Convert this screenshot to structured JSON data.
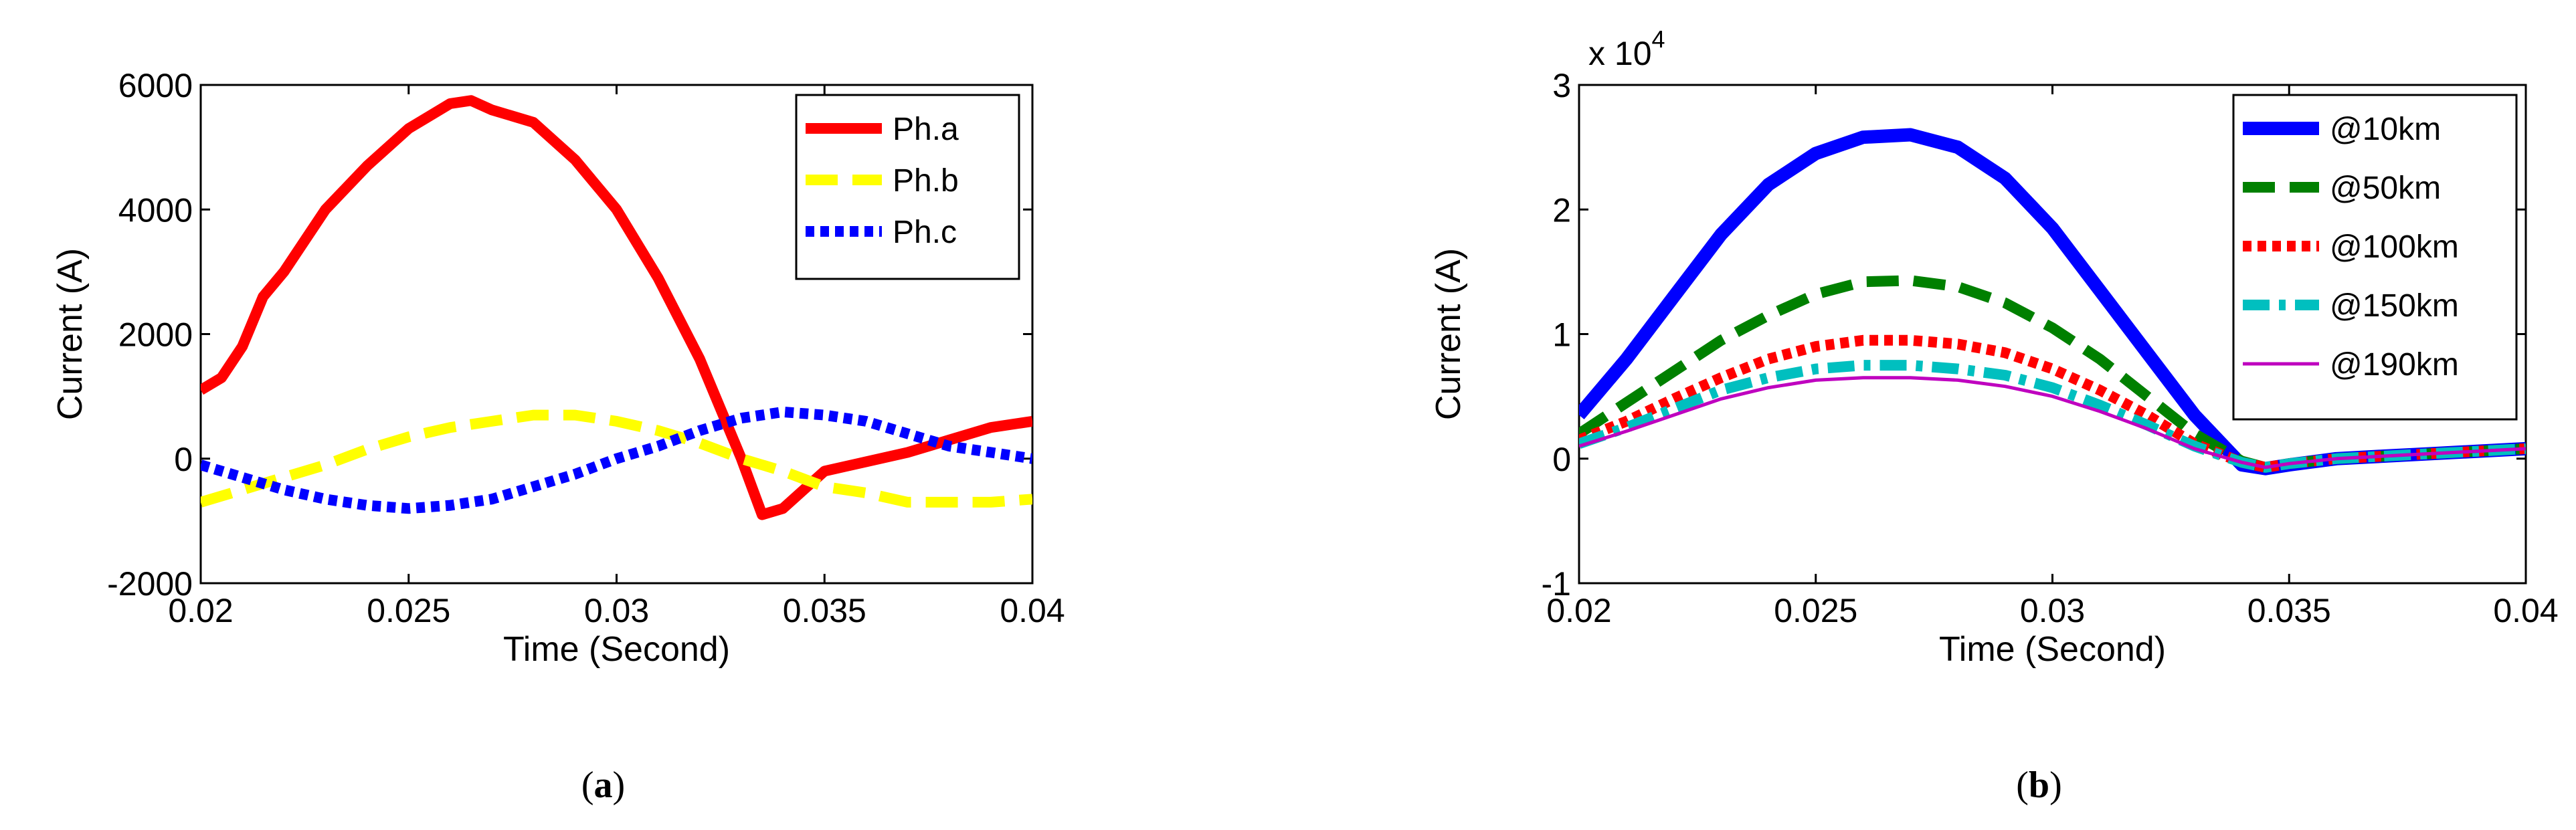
{
  "chart_data": [
    {
      "type": "line",
      "caption": {
        "open": "(",
        "letter": "a",
        "close": ")"
      },
      "xlabel": "Time (Second)",
      "ylabel": "Current (A)",
      "xlim": [
        0.02,
        0.04
      ],
      "ylim": [
        -2000,
        6000
      ],
      "xticks": [
        0.02,
        0.025,
        0.03,
        0.035,
        0.04
      ],
      "xtick_labels": [
        "0.02",
        "0.025",
        "0.03",
        "0.035",
        "0.04"
      ],
      "yticks": [
        -2000,
        0,
        2000,
        4000,
        6000
      ],
      "ytick_labels": [
        "-2000",
        "0",
        "2000",
        "4000",
        "6000"
      ],
      "legend_position": "top-right",
      "series": [
        {
          "name": "Ph.a",
          "color": "#ff0000",
          "style": "solid",
          "x": [
            0.02,
            0.0205,
            0.021,
            0.0215,
            0.022,
            0.023,
            0.024,
            0.025,
            0.026,
            0.0265,
            0.027,
            0.028,
            0.029,
            0.03,
            0.031,
            0.032,
            0.0325,
            0.033,
            0.0335,
            0.034,
            0.0345,
            0.035,
            0.036,
            0.037,
            0.038,
            0.039,
            0.04
          ],
          "y": [
            1100,
            1300,
            1800,
            2600,
            3000,
            4000,
            4700,
            5300,
            5700,
            5750,
            5600,
            5400,
            4800,
            4000,
            2900,
            1600,
            800,
            0,
            -900,
            -800,
            -500,
            -200,
            -50,
            100,
            300,
            500,
            600
          ]
        },
        {
          "name": "Ph.b",
          "color": "#ffff00",
          "style": "dashed",
          "x": [
            0.02,
            0.021,
            0.022,
            0.023,
            0.024,
            0.025,
            0.026,
            0.027,
            0.028,
            0.029,
            0.03,
            0.031,
            0.032,
            0.033,
            0.034,
            0.035,
            0.036,
            0.037,
            0.038,
            0.039,
            0.04
          ],
          "y": [
            -700,
            -500,
            -300,
            -100,
            150,
            350,
            500,
            600,
            700,
            700,
            600,
            450,
            250,
            0,
            -200,
            -450,
            -550,
            -700,
            -700,
            -700,
            -650
          ]
        },
        {
          "name": "Ph.c",
          "color": "#0000ff",
          "style": "dotted",
          "x": [
            0.02,
            0.021,
            0.022,
            0.023,
            0.024,
            0.025,
            0.026,
            0.027,
            0.028,
            0.029,
            0.03,
            0.031,
            0.032,
            0.033,
            0.034,
            0.035,
            0.036,
            0.037,
            0.038,
            0.039,
            0.04
          ],
          "y": [
            -100,
            -300,
            -500,
            -650,
            -750,
            -800,
            -750,
            -650,
            -450,
            -250,
            0,
            200,
            450,
            650,
            750,
            700,
            600,
            400,
            200,
            100,
            0
          ]
        }
      ]
    },
    {
      "type": "line",
      "caption": {
        "open": "(",
        "letter": "b",
        "close": ")"
      },
      "xlabel": "Time (Second)",
      "ylabel": "Current (A)",
      "multiplier": {
        "base": "x 10",
        "exponent": "4"
      },
      "xlim": [
        0.02,
        0.04
      ],
      "ylim": [
        -1,
        3
      ],
      "xticks": [
        0.02,
        0.025,
        0.03,
        0.035,
        0.04
      ],
      "xtick_labels": [
        "0.02",
        "0.025",
        "0.03",
        "0.035",
        "0.04"
      ],
      "yticks": [
        -1,
        0,
        1,
        2,
        3
      ],
      "ytick_labels": [
        "-1",
        "0",
        "1",
        "2",
        "3"
      ],
      "legend_position": "top-right",
      "series": [
        {
          "name": "@10km",
          "color": "#0000ff",
          "style": "solid-thick",
          "x": [
            0.02,
            0.021,
            0.022,
            0.023,
            0.024,
            0.025,
            0.026,
            0.027,
            0.028,
            0.029,
            0.03,
            0.031,
            0.032,
            0.033,
            0.034,
            0.0345,
            0.035,
            0.036,
            0.037,
            0.038,
            0.039,
            0.04
          ],
          "y": [
            0.35,
            0.8,
            1.3,
            1.8,
            2.2,
            2.45,
            2.58,
            2.6,
            2.5,
            2.25,
            1.85,
            1.35,
            0.85,
            0.35,
            -0.05,
            -0.08,
            -0.05,
            0.0,
            0.02,
            0.04,
            0.06,
            0.08
          ]
        },
        {
          "name": "@50km",
          "color": "#008000",
          "style": "dashed",
          "x": [
            0.02,
            0.021,
            0.022,
            0.023,
            0.024,
            0.025,
            0.026,
            0.027,
            0.028,
            0.029,
            0.03,
            0.031,
            0.032,
            0.033,
            0.034,
            0.0345,
            0.035,
            0.036,
            0.037,
            0.038,
            0.039,
            0.04
          ],
          "y": [
            0.2,
            0.45,
            0.7,
            0.95,
            1.15,
            1.32,
            1.42,
            1.43,
            1.38,
            1.25,
            1.05,
            0.8,
            0.5,
            0.2,
            -0.02,
            -0.07,
            -0.04,
            0.0,
            0.02,
            0.04,
            0.06,
            0.08
          ]
        },
        {
          "name": "@100km",
          "color": "#ff0000",
          "style": "dotted",
          "x": [
            0.02,
            0.021,
            0.022,
            0.023,
            0.024,
            0.025,
            0.026,
            0.027,
            0.028,
            0.029,
            0.03,
            0.031,
            0.032,
            0.033,
            0.034,
            0.0345,
            0.035,
            0.036,
            0.037,
            0.038,
            0.039,
            0.04
          ],
          "y": [
            0.15,
            0.3,
            0.48,
            0.65,
            0.8,
            0.9,
            0.95,
            0.95,
            0.92,
            0.85,
            0.72,
            0.55,
            0.35,
            0.12,
            -0.03,
            -0.07,
            -0.04,
            0.0,
            0.02,
            0.04,
            0.06,
            0.08
          ]
        },
        {
          "name": "@150km",
          "color": "#00bfbf",
          "style": "dashdot",
          "x": [
            0.02,
            0.021,
            0.022,
            0.023,
            0.024,
            0.025,
            0.026,
            0.027,
            0.028,
            0.029,
            0.03,
            0.031,
            0.032,
            0.033,
            0.034,
            0.0345,
            0.035,
            0.036,
            0.037,
            0.038,
            0.039,
            0.04
          ],
          "y": [
            0.12,
            0.25,
            0.4,
            0.55,
            0.65,
            0.72,
            0.75,
            0.75,
            0.72,
            0.67,
            0.57,
            0.43,
            0.27,
            0.1,
            -0.03,
            -0.07,
            -0.04,
            0.0,
            0.02,
            0.04,
            0.06,
            0.08
          ]
        },
        {
          "name": "@190km",
          "color": "#bf00bf",
          "style": "solid-thin",
          "x": [
            0.02,
            0.021,
            0.022,
            0.023,
            0.024,
            0.025,
            0.026,
            0.027,
            0.028,
            0.029,
            0.03,
            0.031,
            0.032,
            0.033,
            0.034,
            0.0345,
            0.035,
            0.036,
            0.037,
            0.038,
            0.039,
            0.04
          ],
          "y": [
            0.1,
            0.22,
            0.35,
            0.48,
            0.57,
            0.63,
            0.65,
            0.65,
            0.63,
            0.58,
            0.5,
            0.38,
            0.24,
            0.08,
            -0.03,
            -0.07,
            -0.04,
            0.0,
            0.02,
            0.04,
            0.06,
            0.08
          ]
        }
      ]
    }
  ]
}
